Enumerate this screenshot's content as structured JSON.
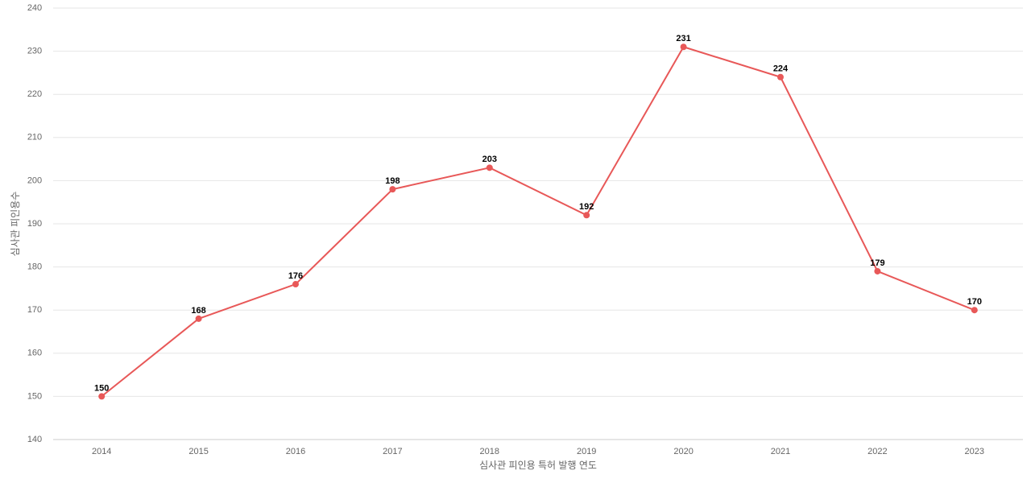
{
  "chart_data": {
    "type": "line",
    "x_label": "심사관 피인용 특허 발행 연도",
    "y_label": "심사관 피인용수",
    "categories": [
      "2014",
      "2015",
      "2016",
      "2017",
      "2018",
      "2019",
      "2020",
      "2021",
      "2022",
      "2023"
    ],
    "values": [
      150,
      168,
      176,
      198,
      203,
      192,
      231,
      224,
      179,
      170
    ],
    "color": "#e85858",
    "ylim": [
      140,
      240
    ],
    "yticks": [
      140,
      150,
      160,
      170,
      180,
      190,
      200,
      210,
      220,
      230,
      240
    ],
    "grid": true
  }
}
